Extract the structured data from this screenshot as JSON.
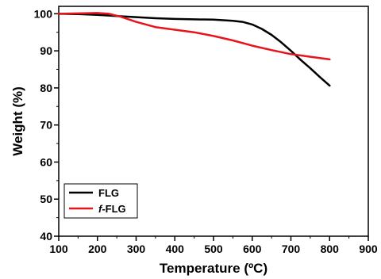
{
  "chart_data": {
    "type": "line",
    "xlabel": "Temperature (ºC)",
    "ylabel": "Weight (%)",
    "xlim": [
      100,
      900
    ],
    "ylim": [
      40,
      102
    ],
    "xticks": [
      100,
      200,
      300,
      400,
      500,
      600,
      700,
      800,
      900
    ],
    "yticks": [
      40,
      50,
      60,
      70,
      80,
      90,
      100
    ],
    "grid": false,
    "legend_position": "bottom-left",
    "series": [
      {
        "name": "FLG",
        "name_prefix": "",
        "name_suffix": "FLG",
        "color": "#000000",
        "x": [
          100,
          150,
          200,
          250,
          300,
          350,
          400,
          450,
          500,
          550,
          575,
          600,
          625,
          650,
          675,
          700,
          725,
          750,
          775,
          800
        ],
        "y": [
          100.0,
          99.9,
          99.7,
          99.4,
          99.1,
          98.8,
          98.6,
          98.5,
          98.4,
          98.1,
          97.8,
          97.1,
          95.9,
          94.3,
          92.3,
          90.0,
          87.6,
          85.3,
          82.9,
          80.6
        ]
      },
      {
        "name": "f-FLG",
        "name_prefix": "f",
        "name_suffix": "-FLG",
        "color": "#e8141c",
        "x": [
          100,
          150,
          200,
          230,
          260,
          300,
          350,
          400,
          450,
          500,
          550,
          600,
          650,
          700,
          750,
          800
        ],
        "y": [
          100.0,
          100.1,
          100.2,
          100.0,
          99.2,
          97.8,
          96.4,
          95.7,
          95.0,
          94.0,
          92.8,
          91.4,
          90.2,
          89.1,
          88.4,
          87.7
        ]
      }
    ]
  }
}
